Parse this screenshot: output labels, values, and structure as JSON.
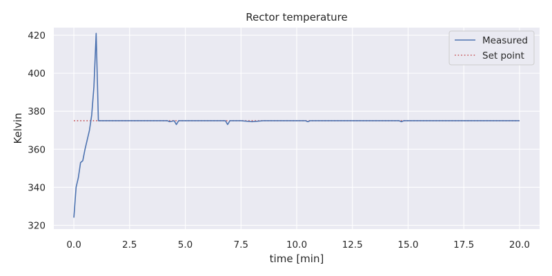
{
  "chart_data": {
    "type": "line",
    "title": "Rector temperature",
    "xlabel": "time [min]",
    "ylabel": "Kelvin",
    "xlim": [
      -0.9,
      20.9
    ],
    "ylim": [
      318,
      424
    ],
    "xticks": [
      0.0,
      2.5,
      5.0,
      7.5,
      10.0,
      12.5,
      15.0,
      17.5,
      20.0
    ],
    "xtick_labels": [
      "0.0",
      "2.5",
      "5.0",
      "7.5",
      "10.0",
      "12.5",
      "15.0",
      "17.5",
      "20.0"
    ],
    "yticks": [
      320,
      340,
      360,
      380,
      400,
      420
    ],
    "ytick_labels": [
      "320",
      "340",
      "360",
      "380",
      "400",
      "420"
    ],
    "grid": true,
    "legend_position": "top-right",
    "series": [
      {
        "name": "Measured",
        "color": "#4c72b0",
        "style": "solid",
        "x": [
          0.0,
          0.1,
          0.2,
          0.3,
          0.4,
          0.5,
          0.6,
          0.7,
          0.8,
          0.9,
          1.0,
          1.1,
          1.5,
          2.5,
          4.0,
          4.2,
          4.3,
          4.5,
          4.6,
          4.7,
          5.0,
          6.0,
          6.8,
          6.9,
          7.0,
          7.1,
          7.5,
          8.0,
          8.5,
          9.0,
          10.0,
          10.4,
          10.5,
          10.6,
          12.0,
          14.0,
          14.6,
          14.7,
          14.8,
          15.0,
          17.0,
          19.0,
          20.0
        ],
        "y": [
          324,
          340,
          345,
          353,
          354,
          360,
          365,
          370,
          378,
          393,
          421,
          375,
          375,
          375,
          375,
          375,
          374.5,
          375,
          373,
          375,
          375,
          375,
          375,
          373,
          375,
          375,
          375,
          374.5,
          375,
          375,
          375,
          375,
          374.5,
          375,
          375,
          375,
          375,
          374.5,
          375,
          375,
          375,
          375,
          375
        ]
      },
      {
        "name": "Set point",
        "color": "#c44e52",
        "style": "dotted",
        "x": [
          0.0,
          20.0
        ],
        "y": [
          375,
          375
        ]
      }
    ]
  }
}
